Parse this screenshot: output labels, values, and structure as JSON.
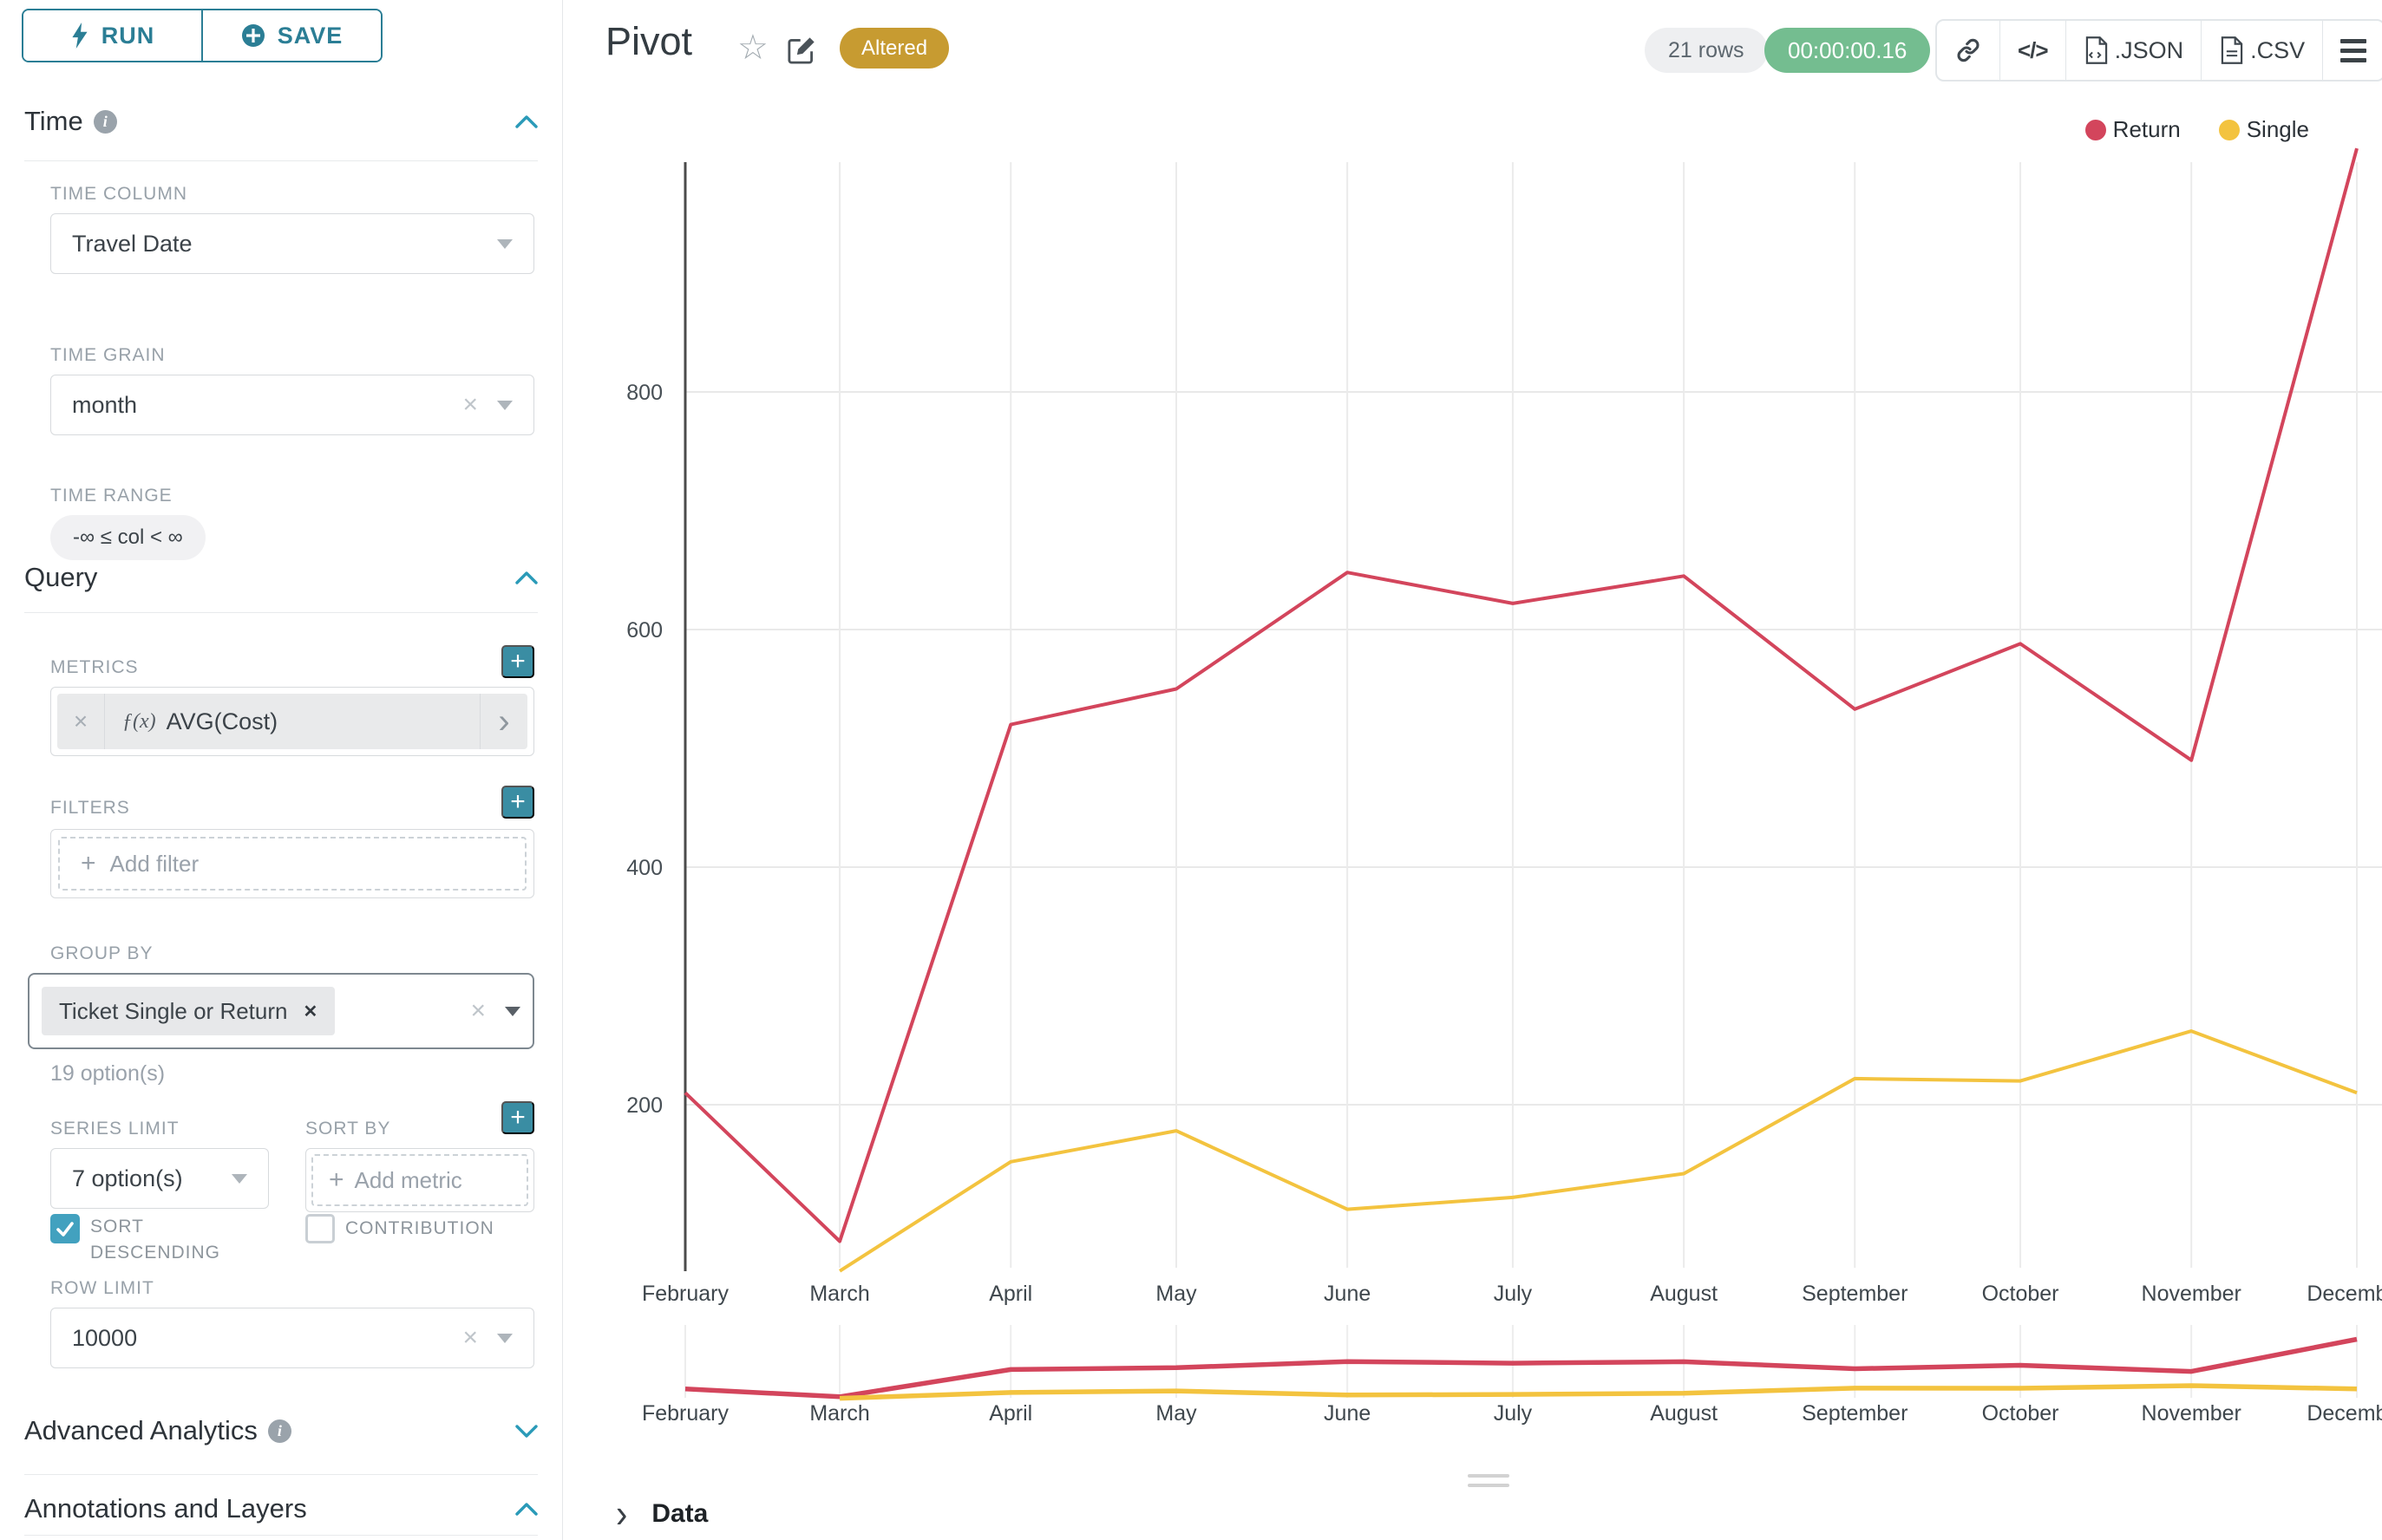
{
  "sidebar": {
    "run_label": "RUN",
    "save_label": "SAVE",
    "time_section": "Time",
    "query_section": "Query",
    "advanced_section": "Advanced Analytics",
    "annotations_section": "Annotations and Layers",
    "time_column": {
      "label": "TIME COLUMN",
      "value": "Travel Date"
    },
    "time_grain": {
      "label": "TIME GRAIN",
      "value": "month"
    },
    "time_range": {
      "label": "TIME RANGE",
      "value": "-∞ ≤ col < ∞"
    },
    "metrics": {
      "label": "METRICS",
      "fx": "ƒ(x)",
      "value": "AVG(Cost)"
    },
    "filters": {
      "label": "FILTERS",
      "placeholder": "Add filter"
    },
    "group_by": {
      "label": "GROUP BY",
      "tag": "Ticket Single or Return",
      "hint": "19 option(s)"
    },
    "series_limit": {
      "label": "SERIES LIMIT",
      "value": "7 option(s)"
    },
    "sort_by": {
      "label": "SORT BY",
      "placeholder": "Add metric"
    },
    "sort_descending_label": "SORT DESCENDING",
    "contribution_label": "CONTRIBUTION",
    "row_limit": {
      "label": "ROW LIMIT",
      "value": "10000"
    }
  },
  "header": {
    "title": "Pivot",
    "badge": "Altered",
    "row_count": "21 rows",
    "timer": "00:00:00.16",
    "json_label": ".JSON",
    "csv_label": ".CSV"
  },
  "data_panel": {
    "label": "Data"
  },
  "chart_data": {
    "type": "line",
    "categories": [
      "February",
      "March",
      "April",
      "May",
      "June",
      "July",
      "August",
      "September",
      "October",
      "November",
      "December"
    ],
    "x_days": [
      0,
      28,
      59,
      89,
      120,
      150,
      181,
      212,
      242,
      273,
      303
    ],
    "yticks": [
      200,
      400,
      600,
      800
    ],
    "ylim": [
      40,
      1010
    ],
    "grid": true,
    "legend_position": "top-right",
    "series": [
      {
        "name": "Return",
        "color": "#d3455c",
        "values": [
          210,
          85,
          520,
          550,
          648,
          622,
          645,
          533,
          588,
          490,
          1005
        ]
      },
      {
        "name": "Single",
        "color": "#f3c33f",
        "values": [
          null,
          60,
          152,
          178,
          112,
          122,
          142,
          222,
          220,
          262,
          210
        ]
      }
    ]
  }
}
